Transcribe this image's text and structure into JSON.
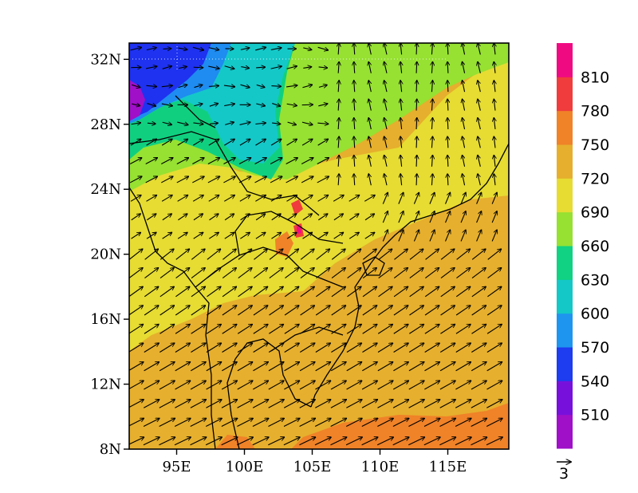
{
  "map": {
    "lon_range": [
      91.5,
      119.5
    ],
    "lat_range": [
      8,
      33
    ],
    "lat_ticks": [
      {
        "value": 32,
        "label": "32N"
      },
      {
        "value": 28,
        "label": "28N"
      },
      {
        "value": 24,
        "label": "24N"
      },
      {
        "value": 20,
        "label": "20N"
      },
      {
        "value": 16,
        "label": "16N"
      },
      {
        "value": 12,
        "label": "12N"
      },
      {
        "value": 8,
        "label": "8N"
      }
    ],
    "lon_ticks": [
      {
        "value": 95,
        "label": "95E"
      },
      {
        "value": 100,
        "label": "100E"
      },
      {
        "value": 105,
        "label": "105E"
      },
      {
        "value": 110,
        "label": "110E"
      },
      {
        "value": 115,
        "label": "115E"
      }
    ],
    "field_colors": {
      "violet": "#a010c8",
      "blue_deep": "#1e32f0",
      "blue_mid": "#1e8cf0",
      "cyan": "#14c8c8",
      "green": "#10d080",
      "lime": "#96e132",
      "yellow": "#e6dc32",
      "gold": "#e6af2d",
      "orange": "#f08228",
      "red": "#f03c3c",
      "magenta": "#f00a82"
    },
    "arrow_color": "#000000"
  },
  "colorbar": {
    "segments": [
      {
        "color": "#a010c8"
      },
      {
        "color": "#7810dc"
      },
      {
        "color": "#1e3cf0"
      },
      {
        "color": "#1e96f0"
      },
      {
        "color": "#14c8c8"
      },
      {
        "color": "#10d282"
      },
      {
        "color": "#96e132"
      },
      {
        "color": "#e6dc32"
      },
      {
        "color": "#e6af2d"
      },
      {
        "color": "#f08228"
      },
      {
        "color": "#f03c3c"
      },
      {
        "color": "#f00a82"
      }
    ],
    "labels": [
      "510",
      "540",
      "570",
      "600",
      "630",
      "660",
      "690",
      "720",
      "750",
      "780",
      "810"
    ]
  },
  "reference_vector": {
    "label": "3"
  }
}
